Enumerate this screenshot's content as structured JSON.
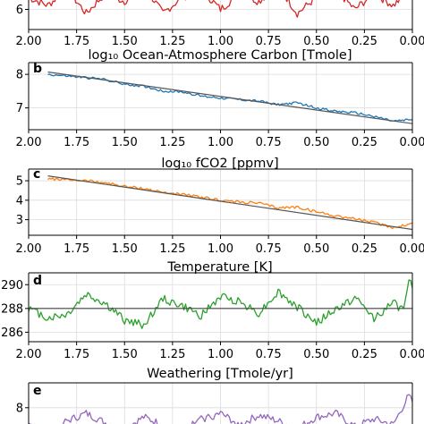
{
  "chart_data": [
    {
      "type": "line",
      "panel": "",
      "title": "",
      "xlabel": "log₁₀ Ocean-Atmosphere Carbon [Tmole]",
      "ylabel": "",
      "xlim": [
        2.0,
        0.0
      ],
      "ylim": [
        5.5,
        6.9
      ],
      "x_reversed": true,
      "xticks": [
        "2.00",
        "1.75",
        "1.50",
        "1.25",
        "1.00",
        "0.75",
        "0.50",
        "0.25",
        "0.00"
      ],
      "yticks": [
        {
          "value": 6,
          "label": "6"
        }
      ],
      "grid": true,
      "series": [
        {
          "color": "#d62728",
          "x": [
            2.0,
            1.9,
            1.8,
            1.7,
            1.6,
            1.5,
            1.4,
            1.3,
            1.2,
            1.1,
            1.0,
            0.9,
            0.8,
            0.7,
            0.6,
            0.5,
            0.4,
            0.3,
            0.2,
            0.1,
            0.0
          ],
          "y": [
            6.3,
            6.1,
            6.5,
            5.9,
            6.4,
            6.2,
            6.6,
            5.9,
            6.3,
            6.5,
            6.0,
            6.4,
            6.2,
            6.6,
            5.9,
            6.3,
            6.5,
            6.0,
            6.4,
            6.1,
            6.5
          ],
          "noise": 0.1
        }
      ]
    },
    {
      "type": "line",
      "panel": "b",
      "title": "",
      "xlabel": "log₁₀ fCO2 [ppmv]",
      "ylabel": "",
      "xlim": [
        2.0,
        0.0
      ],
      "ylim": [
        6.35,
        8.35
      ],
      "x_reversed": true,
      "xticks": [
        "2.00",
        "1.75",
        "1.50",
        "1.25",
        "1.00",
        "0.75",
        "0.50",
        "0.25",
        "0.00"
      ],
      "yticks": [
        {
          "value": 7,
          "label": "7"
        },
        {
          "value": 8,
          "label": "8"
        }
      ],
      "grid": true,
      "series": [
        {
          "color": "#1f77b4",
          "x": [
            1.9,
            1.8,
            1.7,
            1.6,
            1.5,
            1.4,
            1.3,
            1.2,
            1.1,
            1.0,
            0.9,
            0.8,
            0.7,
            0.6,
            0.5,
            0.4,
            0.3,
            0.2,
            0.1,
            0.0
          ],
          "y": [
            8.0,
            7.95,
            7.9,
            7.85,
            7.7,
            7.65,
            7.5,
            7.48,
            7.35,
            7.3,
            7.25,
            7.2,
            7.1,
            7.15,
            7.0,
            6.9,
            6.85,
            6.75,
            6.6,
            6.65
          ],
          "noise": 0.035
        },
        {
          "role": "trend",
          "color": "#555555",
          "x": [
            1.9,
            0.0
          ],
          "y": [
            8.07,
            6.53
          ]
        }
      ]
    },
    {
      "type": "line",
      "panel": "c",
      "title": "",
      "xlabel": "Temperature [K]",
      "ylabel": "",
      "xlim": [
        2.0,
        0.0
      ],
      "ylim": [
        2.2,
        5.6
      ],
      "x_reversed": true,
      "xticks": [
        "2.00",
        "1.75",
        "1.50",
        "1.25",
        "1.00",
        "0.75",
        "0.50",
        "0.25",
        "0.00"
      ],
      "yticks": [
        {
          "value": 3,
          "label": "3"
        },
        {
          "value": 4,
          "label": "4"
        },
        {
          "value": 5,
          "label": "5"
        }
      ],
      "grid": true,
      "series": [
        {
          "color": "#ff7f0e",
          "x": [
            1.9,
            1.8,
            1.7,
            1.6,
            1.5,
            1.4,
            1.3,
            1.2,
            1.1,
            1.0,
            0.9,
            0.8,
            0.7,
            0.6,
            0.5,
            0.4,
            0.3,
            0.2,
            0.1,
            0.0
          ],
          "y": [
            5.1,
            5.05,
            5.0,
            4.9,
            4.7,
            4.6,
            4.4,
            4.3,
            4.15,
            4.0,
            3.9,
            3.85,
            3.6,
            3.65,
            3.4,
            3.2,
            3.05,
            2.85,
            2.6,
            2.8
          ],
          "noise": 0.07
        },
        {
          "role": "trend",
          "color": "#555555",
          "x": [
            1.9,
            0.0
          ],
          "y": [
            5.25,
            2.5
          ]
        }
      ]
    },
    {
      "type": "line",
      "panel": "d",
      "title": "",
      "xlabel": "Weathering [Tmole/yr]",
      "ylabel": "",
      "xlim": [
        2.0,
        0.0
      ],
      "ylim": [
        285.2,
        291.0
      ],
      "x_reversed": true,
      "xticks": [
        "2.00",
        "1.75",
        "1.50",
        "1.25",
        "1.00",
        "0.75",
        "0.50",
        "0.25",
        "0.00"
      ],
      "yticks": [
        {
          "value": 286,
          "label": "286"
        },
        {
          "value": 288,
          "label": "288"
        },
        {
          "value": 290,
          "label": "290"
        }
      ],
      "grid": true,
      "series": [
        {
          "color": "#2ca02c",
          "x": [
            2.0,
            1.9,
            1.8,
            1.7,
            1.6,
            1.5,
            1.4,
            1.3,
            1.2,
            1.1,
            1.0,
            0.9,
            0.8,
            0.7,
            0.6,
            0.5,
            0.4,
            0.3,
            0.2,
            0.1,
            0.05,
            0.02,
            0.0
          ],
          "y": [
            288.0,
            287.2,
            287.5,
            289.2,
            288.4,
            287.0,
            286.6,
            288.8,
            288.2,
            287.4,
            289.0,
            288.6,
            287.6,
            289.4,
            288.1,
            286.8,
            287.9,
            288.9,
            287.2,
            288.5,
            287.8,
            290.3,
            290.0
          ],
          "noise": 0.35
        },
        {
          "role": "reference",
          "color": "#444444",
          "x": [
            2.0,
            0.0
          ],
          "y": [
            288.0,
            288.0
          ]
        }
      ]
    },
    {
      "type": "line",
      "panel": "e",
      "title": "",
      "xlabel": "",
      "ylabel": "",
      "xlim": [
        2.0,
        0.0
      ],
      "ylim": [
        6.4,
        9.3
      ],
      "x_reversed": true,
      "xticks": [],
      "yticks": [
        {
          "value": 8,
          "label": "8"
        }
      ],
      "grid": true,
      "series": [
        {
          "color": "#9467bd",
          "x": [
            2.0,
            1.9,
            1.8,
            1.7,
            1.6,
            1.5,
            1.4,
            1.3,
            1.2,
            1.1,
            1.0,
            0.9,
            0.8,
            0.7,
            0.6,
            0.5,
            0.4,
            0.3,
            0.2,
            0.1,
            0.02,
            0.0
          ],
          "y": [
            7.0,
            6.8,
            7.3,
            7.7,
            7.2,
            6.9,
            7.5,
            7.1,
            6.8,
            7.4,
            7.7,
            7.1,
            7.6,
            7.3,
            6.9,
            7.5,
            7.7,
            7.0,
            7.4,
            7.1,
            8.6,
            8.3
          ],
          "noise": 0.2
        },
        {
          "role": "reference",
          "color": "#444444",
          "x": [
            2.0,
            0.0
          ],
          "y": [
            7.0,
            7.0
          ]
        }
      ]
    }
  ]
}
